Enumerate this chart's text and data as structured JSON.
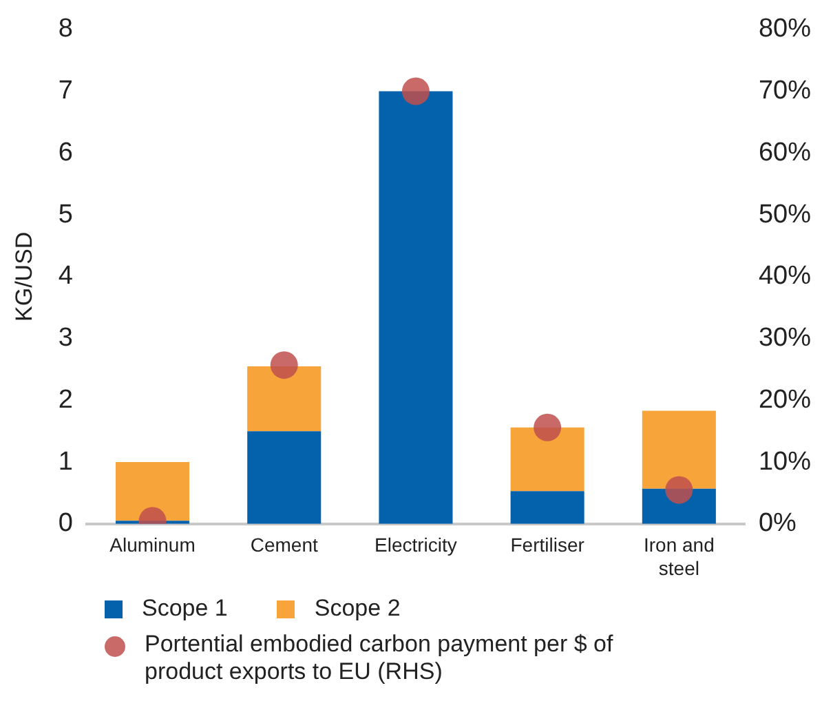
{
  "chart_data": {
    "type": "bar",
    "stacked": true,
    "ylabel": "KG/USD",
    "categories": [
      "Aluminum",
      "Cement",
      "Electricity",
      "Fertiliser",
      "Iron and steel"
    ],
    "series": [
      {
        "name": "Scope 1",
        "color": "#0462ad",
        "values": [
          0.05,
          1.5,
          7.0,
          0.53,
          0.57
        ]
      },
      {
        "name": "Scope 2",
        "color": "#f7a43b",
        "values": [
          0.95,
          1.05,
          0,
          1.03,
          1.26
        ]
      },
      {
        "name": "Portential embodied carbon payment per $ of product exports to EU (RHS)",
        "type": "scatter",
        "axis": "y2",
        "color": "#c0504d",
        "x": [
          "Aluminum",
          "Cement",
          "Electricity",
          "Fertiliser",
          "Iron and steel"
        ],
        "values": [
          0.5,
          25.7,
          70,
          15.6,
          5.5
        ]
      }
    ],
    "ylim": [
      0,
      8
    ],
    "yticks": [
      0,
      1,
      2,
      3,
      4,
      5,
      6,
      7,
      8
    ],
    "y2lim": [
      0,
      80
    ],
    "y2ticks": [
      {
        "value": 0,
        "label": "0%"
      },
      {
        "value": 10,
        "label": "10%"
      },
      {
        "value": 20,
        "label": "20%"
      },
      {
        "value": 30,
        "label": "30%"
      },
      {
        "value": 40,
        "label": "40%"
      },
      {
        "value": 50,
        "label": "50%"
      },
      {
        "value": 60,
        "label": "60%"
      },
      {
        "value": 70,
        "label": "70%"
      },
      {
        "value": 80,
        "label": "80%"
      }
    ],
    "grid": false,
    "legend": "bottom",
    "marker": "circle"
  }
}
